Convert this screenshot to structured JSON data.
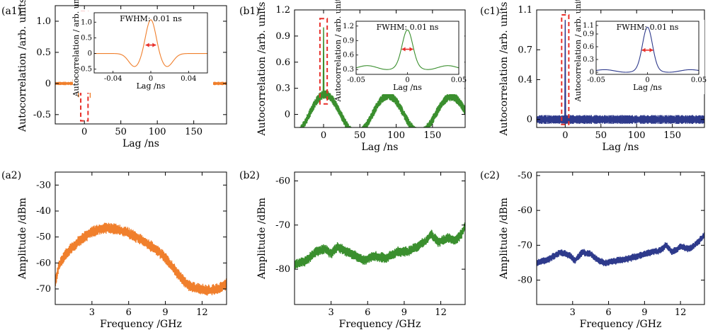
{
  "figure": {
    "panels": [
      {
        "id": "a1",
        "label": "(a1)",
        "kind": "acf",
        "color": "#f07f2c",
        "noise": 0.018,
        "xlabel": "Lag /ns",
        "ylabel": "Autocorrelation /arb. units",
        "xlim": [
          -40,
          195
        ],
        "ylim": [
          -0.65,
          1.25
        ],
        "xticks": [
          0,
          50,
          100,
          150
        ],
        "yticks": [
          -0.5,
          0,
          0.5,
          1.0
        ],
        "ytick_labels": [
          "-0.5",
          "0",
          "0.5",
          "1.0"
        ],
        "zoom_box": {
          "x": [
            -5,
            5
          ],
          "y": [
            -0.6,
            1.15
          ]
        },
        "inset": {
          "xlabel": "Lag /ns",
          "ylabel": "Autocorrelation / arb. units",
          "xlim": [
            -0.06,
            0.06
          ],
          "ylim": [
            -0.62,
            1.3
          ],
          "xticks": [
            -0.04,
            0,
            0.04
          ],
          "xtick_labels": [
            "-0.04",
            "0",
            "0.04"
          ],
          "yticks": [
            -0.5,
            0,
            0.5,
            1.0
          ],
          "ytick_labels": [
            "-0.5",
            "0",
            "0.5",
            "1.0"
          ],
          "annotation": "FWHM: 0.01 ns"
        }
      },
      {
        "id": "b1",
        "label": "(b1)",
        "kind": "acf",
        "color": "#3a8f2e",
        "noise": 0.035,
        "xlabel": "Lag /ns",
        "ylabel": "Autocorrelation /arb. units",
        "xlim": [
          -40,
          195
        ],
        "ylim": [
          -0.15,
          1.2
        ],
        "xticks": [
          0,
          50,
          100,
          150
        ],
        "yticks": [
          0,
          0.3,
          0.6,
          0.9,
          1.2
        ],
        "ytick_labels": [
          "0",
          "0.3",
          "0.6",
          "0.9",
          "1.2"
        ],
        "zoom_box": {
          "x": [
            -5,
            5
          ],
          "y": [
            0.12,
            1.1
          ]
        },
        "inset": {
          "xlabel": "Lag /ns",
          "ylabel": "Autocorrelation / arb. units",
          "xlim": [
            -0.05,
            0.05
          ],
          "ylim": [
            0.2,
            1.3
          ],
          "xticks": [
            -0.05,
            0,
            0.05
          ],
          "xtick_labels": [
            "-0.05",
            "0",
            "0.05"
          ],
          "yticks": [
            0.3,
            0.6,
            0.9,
            1.2
          ],
          "ytick_labels": [
            "0.3",
            "0.6",
            "0.9",
            "1.2"
          ],
          "annotation": "FWHM: 0.01 ns"
        }
      },
      {
        "id": "c1",
        "label": "(c1)",
        "kind": "acf",
        "color": "#2e3a8c",
        "noise": 0.03,
        "xlabel": "Lag /ns",
        "ylabel": "Autocorrelation /arb. units",
        "xlim": [
          -40,
          195
        ],
        "ylim": [
          -0.08,
          1.1
        ],
        "xticks": [
          0,
          50,
          100,
          150
        ],
        "yticks": [
          0,
          0.4,
          0.7,
          1.1
        ],
        "ytick_labels": [
          "0",
          "0.4",
          "0.7",
          "1.1"
        ],
        "zoom_box": {
          "x": [
            -5,
            5
          ],
          "y": [
            -0.05,
            1.05
          ]
        },
        "inset": {
          "xlabel": "Lag /ns",
          "ylabel": "Autocorrelation / arb. units",
          "xlim": [
            -0.05,
            0.05
          ],
          "ylim": [
            -0.05,
            1.2
          ],
          "xticks": [
            -0.05,
            0,
            0.05
          ],
          "xtick_labels": [
            "-0.05",
            "0",
            "0.05"
          ],
          "yticks": [
            0,
            0.3,
            0.6,
            0.9,
            1.1
          ],
          "ytick_labels": [
            "0",
            "0.3",
            "0.6",
            "0.9",
            "1.1"
          ],
          "annotation": "FWHM: 0.01 ns"
        }
      },
      {
        "id": "a2",
        "label": "(a2)",
        "kind": "spectrum",
        "color": "#f07f2c",
        "band": 1.7,
        "xlabel": "Frequency /GHz",
        "ylabel": "Amplitude /dBm",
        "xlim": [
          0,
          14
        ],
        "ylim": [
          -76,
          -25
        ],
        "xticks": [
          3,
          6,
          9,
          12
        ],
        "yticks": [
          -70,
          -60,
          -50,
          -40,
          -30
        ],
        "ytick_labels": [
          "-70",
          "-60",
          "-50",
          "-40",
          "-30"
        ],
        "points": [
          [
            0,
            -68
          ],
          [
            0.3,
            -61
          ],
          [
            0.8,
            -57
          ],
          [
            1.5,
            -53.5
          ],
          [
            2.2,
            -50.5
          ],
          [
            3,
            -48
          ],
          [
            4,
            -46.5
          ],
          [
            5,
            -47
          ],
          [
            6,
            -48.5
          ],
          [
            7,
            -51
          ],
          [
            8,
            -54
          ],
          [
            8.8,
            -57
          ],
          [
            9.5,
            -61
          ],
          [
            10.3,
            -66
          ],
          [
            11,
            -69
          ],
          [
            11.8,
            -70
          ],
          [
            12.5,
            -70.5
          ],
          [
            13.3,
            -70
          ],
          [
            14,
            -68
          ]
        ]
      },
      {
        "id": "b2",
        "label": "(b2)",
        "kind": "spectrum",
        "color": "#3a8f2e",
        "band": 0.9,
        "xlabel": "Frequency /GHz",
        "ylabel": "Amplitude /dBm",
        "xlim": [
          0,
          14
        ],
        "ylim": [
          -88,
          -58
        ],
        "xticks": [
          3,
          6,
          9,
          12
        ],
        "yticks": [
          -80,
          -70,
          -60
        ],
        "ytick_labels": [
          "-80",
          "-70",
          "-60"
        ],
        "points": [
          [
            0,
            -79
          ],
          [
            1,
            -78
          ],
          [
            1.8,
            -76
          ],
          [
            2.5,
            -75.5
          ],
          [
            3,
            -76.5
          ],
          [
            3.5,
            -75
          ],
          [
            4.3,
            -76
          ],
          [
            5,
            -77
          ],
          [
            5.7,
            -78
          ],
          [
            6.5,
            -77
          ],
          [
            7.5,
            -77.5
          ],
          [
            8.5,
            -76
          ],
          [
            9.3,
            -76
          ],
          [
            10,
            -75
          ],
          [
            10.8,
            -73.5
          ],
          [
            11.2,
            -72
          ],
          [
            11.8,
            -74
          ],
          [
            12.5,
            -73
          ],
          [
            13.2,
            -73.5
          ],
          [
            13.7,
            -72
          ],
          [
            14,
            -70
          ]
        ]
      },
      {
        "id": "c2",
        "label": "(c2)",
        "kind": "spectrum",
        "color": "#2e3a8c",
        "band": 0.8,
        "xlabel": "Frequency /GHz",
        "ylabel": "Amplitude /dBm",
        "xlim": [
          0,
          14
        ],
        "ylim": [
          -87,
          -49
        ],
        "xticks": [
          3,
          6,
          9,
          12
        ],
        "yticks": [
          -80,
          -70,
          -60,
          -50
        ],
        "ytick_labels": [
          "-80",
          "-70",
          "-60",
          "-50"
        ],
        "points": [
          [
            0,
            -75
          ],
          [
            1,
            -74
          ],
          [
            2,
            -72
          ],
          [
            2.8,
            -73
          ],
          [
            3.2,
            -74.5
          ],
          [
            3.8,
            -72
          ],
          [
            4.5,
            -72.5
          ],
          [
            5.2,
            -74.5
          ],
          [
            5.7,
            -75
          ],
          [
            6.5,
            -74.5
          ],
          [
            7.5,
            -74
          ],
          [
            8.5,
            -73
          ],
          [
            9.5,
            -72
          ],
          [
            10.3,
            -71.5
          ],
          [
            10.8,
            -70
          ],
          [
            11.3,
            -72
          ],
          [
            12,
            -70.5
          ],
          [
            12.8,
            -71
          ],
          [
            13.5,
            -69
          ],
          [
            14,
            -67
          ]
        ]
      }
    ]
  },
  "chart_data": [
    {
      "type": "line",
      "title": "(a1)",
      "xlabel": "Lag /ns",
      "ylabel": "Autocorrelation /arb. units",
      "xlim": [
        -40,
        195
      ],
      "ylim": [
        -0.65,
        1.25
      ],
      "series": [
        {
          "name": "autocorrelation",
          "x": [
            -40,
            -15,
            -8,
            0,
            8,
            15,
            195
          ],
          "y": [
            0,
            0.25,
            -0.2,
            1.0,
            -0.2,
            0.25,
            0
          ]
        }
      ],
      "inset": {
        "xlim": [
          -0.06,
          0.06
        ],
        "x": [
          -0.05,
          -0.02,
          0,
          0.02,
          0.05
        ],
        "y": [
          0,
          -0.3,
          1.1,
          -0.3,
          0
        ],
        "annotation": "FWHM: 0.01 ns"
      }
    },
    {
      "type": "line",
      "title": "(b1)",
      "xlabel": "Lag /ns",
      "ylabel": "Autocorrelation /arb. units",
      "xlim": [
        -40,
        195
      ],
      "ylim": [
        -0.15,
        1.2
      ],
      "series": [
        {
          "name": "autocorrelation",
          "x": [
            -40,
            0,
            45,
            88,
            130,
            175,
            195
          ],
          "y": [
            -0.05,
            0.23,
            -0.05,
            0.17,
            -0.05,
            0.11,
            0.05
          ]
        }
      ],
      "inset": {
        "xlim": [
          -0.05,
          0.05
        ],
        "x": [
          -0.05,
          -0.01,
          0,
          0.01,
          0.05
        ],
        "y": [
          0.3,
          0.4,
          1.1,
          0.4,
          0.3
        ],
        "annotation": "FWHM: 0.01 ns"
      }
    },
    {
      "type": "line",
      "title": "(c1)",
      "xlabel": "Lag /ns",
      "ylabel": "Autocorrelation /arb. units",
      "xlim": [
        -40,
        195
      ],
      "ylim": [
        -0.08,
        1.1
      ],
      "series": [
        {
          "name": "autocorrelation",
          "x": [
            -40,
            0,
            195
          ],
          "y": [
            0.02,
            0.02,
            0.02
          ]
        }
      ],
      "inset": {
        "xlim": [
          -0.05,
          0.05
        ],
        "x": [
          -0.05,
          -0.01,
          0,
          0.01,
          0.05
        ],
        "y": [
          0,
          0.05,
          1.02,
          0.05,
          0
        ],
        "annotation": "FWHM: 0.01 ns"
      }
    },
    {
      "type": "line",
      "title": "(a2)",
      "xlabel": "Frequency /GHz",
      "ylabel": "Amplitude /dBm",
      "xlim": [
        0,
        14
      ],
      "ylim": [
        -76,
        -25
      ],
      "series": [
        {
          "name": "spectrum",
          "x": [
            0,
            1.5,
            3,
            4,
            6,
            8,
            10.3,
            12.5,
            14
          ],
          "y": [
            -68,
            -53.5,
            -48,
            -46.5,
            -48.5,
            -54,
            -66,
            -70.5,
            -68
          ]
        }
      ]
    },
    {
      "type": "line",
      "title": "(b2)",
      "xlabel": "Frequency /GHz",
      "ylabel": "Amplitude /dBm",
      "xlim": [
        0,
        14
      ],
      "ylim": [
        -88,
        -58
      ],
      "series": [
        {
          "name": "spectrum",
          "x": [
            0,
            2.5,
            5.7,
            9.3,
            11.2,
            14
          ],
          "y": [
            -79,
            -75.5,
            -78,
            -76,
            -72,
            -70
          ]
        }
      ]
    },
    {
      "type": "line",
      "title": "(c2)",
      "xlabel": "Frequency /GHz",
      "ylabel": "Amplitude /dBm",
      "xlim": [
        0,
        14
      ],
      "ylim": [
        -87,
        -49
      ],
      "series": [
        {
          "name": "spectrum",
          "x": [
            0,
            2,
            5.7,
            10.8,
            14
          ],
          "y": [
            -75,
            -72,
            -75,
            -70,
            -67
          ]
        }
      ]
    }
  ]
}
